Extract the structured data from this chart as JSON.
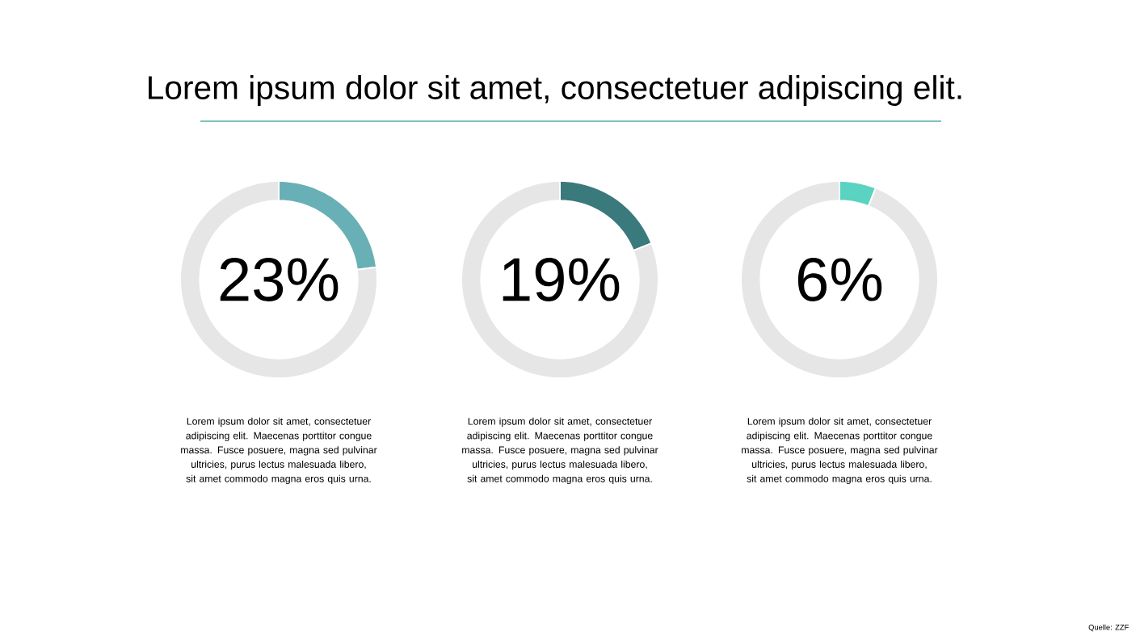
{
  "chart_data": [
    {
      "type": "donut",
      "title": "Lorem ipsum dolor sit amet, consectetuer adipiscing elit.",
      "categories": [
        null,
        null
      ],
      "values": [
        23,
        77
      ],
      "colors": [
        "#68b0b5",
        "#e6e6e6"
      ],
      "annotations": [
        "23%",
        "Lorem ipsum dolor sit amet, consectetuer adipiscing elit. Maecenas porttitor congue massa. Fusce posuere, magna sed pulvinar ultricies, purus lectus malesuada libero, sit amet commodo magna eros quis urna."
      ]
    },
    {
      "type": "donut",
      "categories": [
        null,
        null
      ],
      "values": [
        19,
        81
      ],
      "colors": [
        "#3b7a7c",
        "#e6e6e6"
      ],
      "annotations": [
        "19%",
        "Lorem ipsum dolor sit amet, consectetuer adipiscing elit. Maecenas porttitor congue massa. Fusce posuere, magna sed pulvinar ultricies, purus lectus malesuada libero, sit amet commodo magna eros quis urna."
      ]
    },
    {
      "type": "donut",
      "categories": [
        null,
        null
      ],
      "values": [
        6,
        94
      ],
      "colors": [
        "#5ad3c0",
        "#e6e6e6"
      ],
      "annotations": [
        "6%",
        "Lorem ipsum dolor sit amet, consectetuer adipiscing elit. Maecenas porttitor congue massa. Fusce posuere, magna sed pulvinar ultricies, purus lectus malesuada libero, sit amet commodo magna eros quis urna.",
        "Quelle: ZZF"
      ]
    }
  ]
}
